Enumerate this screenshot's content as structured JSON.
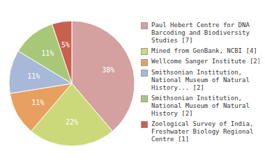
{
  "chart_data": {
    "type": "pie",
    "categories": [
      "Paul Hebert Centre for DNA\nBarcoding and Biodiversity\nStudies [7]",
      "Mined from GenBank, NCBI [4]",
      "Wellcome Sanger Institute [2]",
      "Smithsonian Institution,\nNational Museum of Natural\nHistory... [2]",
      "Smithsonian Institution,\nNational Museum of Natural\nHistory [2]",
      "Zoological Survey of India,\nFreshwater Biology Regional\nCentre [1]"
    ],
    "values": [
      38,
      22,
      11,
      11,
      11,
      5
    ],
    "value_labels": [
      "38%",
      "22%",
      "11%",
      "11%",
      "11%",
      "5%"
    ],
    "data_labels": true,
    "colors": [
      "#d4a0a0",
      "#ccd97a",
      "#e8a060",
      "#a8b8d8",
      "#a8c878",
      "#c86050"
    ],
    "legend": "right"
  }
}
